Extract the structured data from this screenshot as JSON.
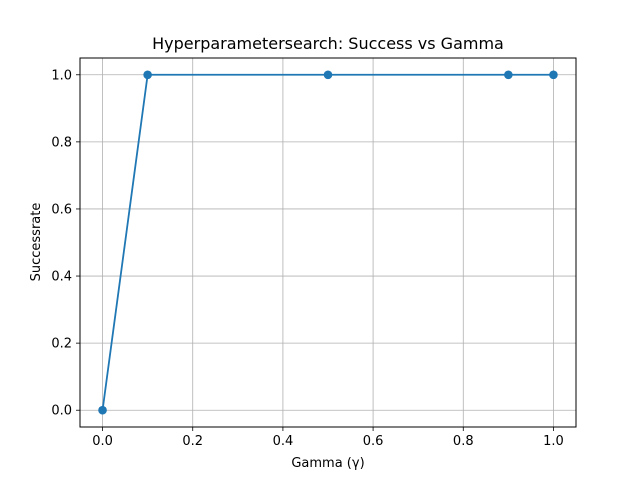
{
  "chart_data": {
    "type": "line",
    "title": "Hyperparametersearch: Success vs Gamma",
    "xlabel": "Gamma (γ)",
    "ylabel": "Successrate",
    "xlim": [
      -0.05,
      1.05
    ],
    "ylim": [
      -0.05,
      1.05
    ],
    "grid": true,
    "xticks": [
      0.0,
      0.2,
      0.4,
      0.6,
      0.8,
      1.0
    ],
    "xtick_labels": [
      "0.0",
      "0.2",
      "0.4",
      "0.6",
      "0.8",
      "1.0"
    ],
    "yticks": [
      0.0,
      0.2,
      0.4,
      0.6,
      0.8,
      1.0
    ],
    "ytick_labels": [
      "0.0",
      "0.2",
      "0.4",
      "0.6",
      "0.8",
      "1.0"
    ],
    "series": [
      {
        "x": [
          0.0,
          0.1,
          0.5,
          0.9,
          1.0
        ],
        "values": [
          0.0,
          1.0,
          1.0,
          1.0,
          1.0
        ],
        "color": "#1f77b4",
        "marker": "circle"
      }
    ]
  }
}
